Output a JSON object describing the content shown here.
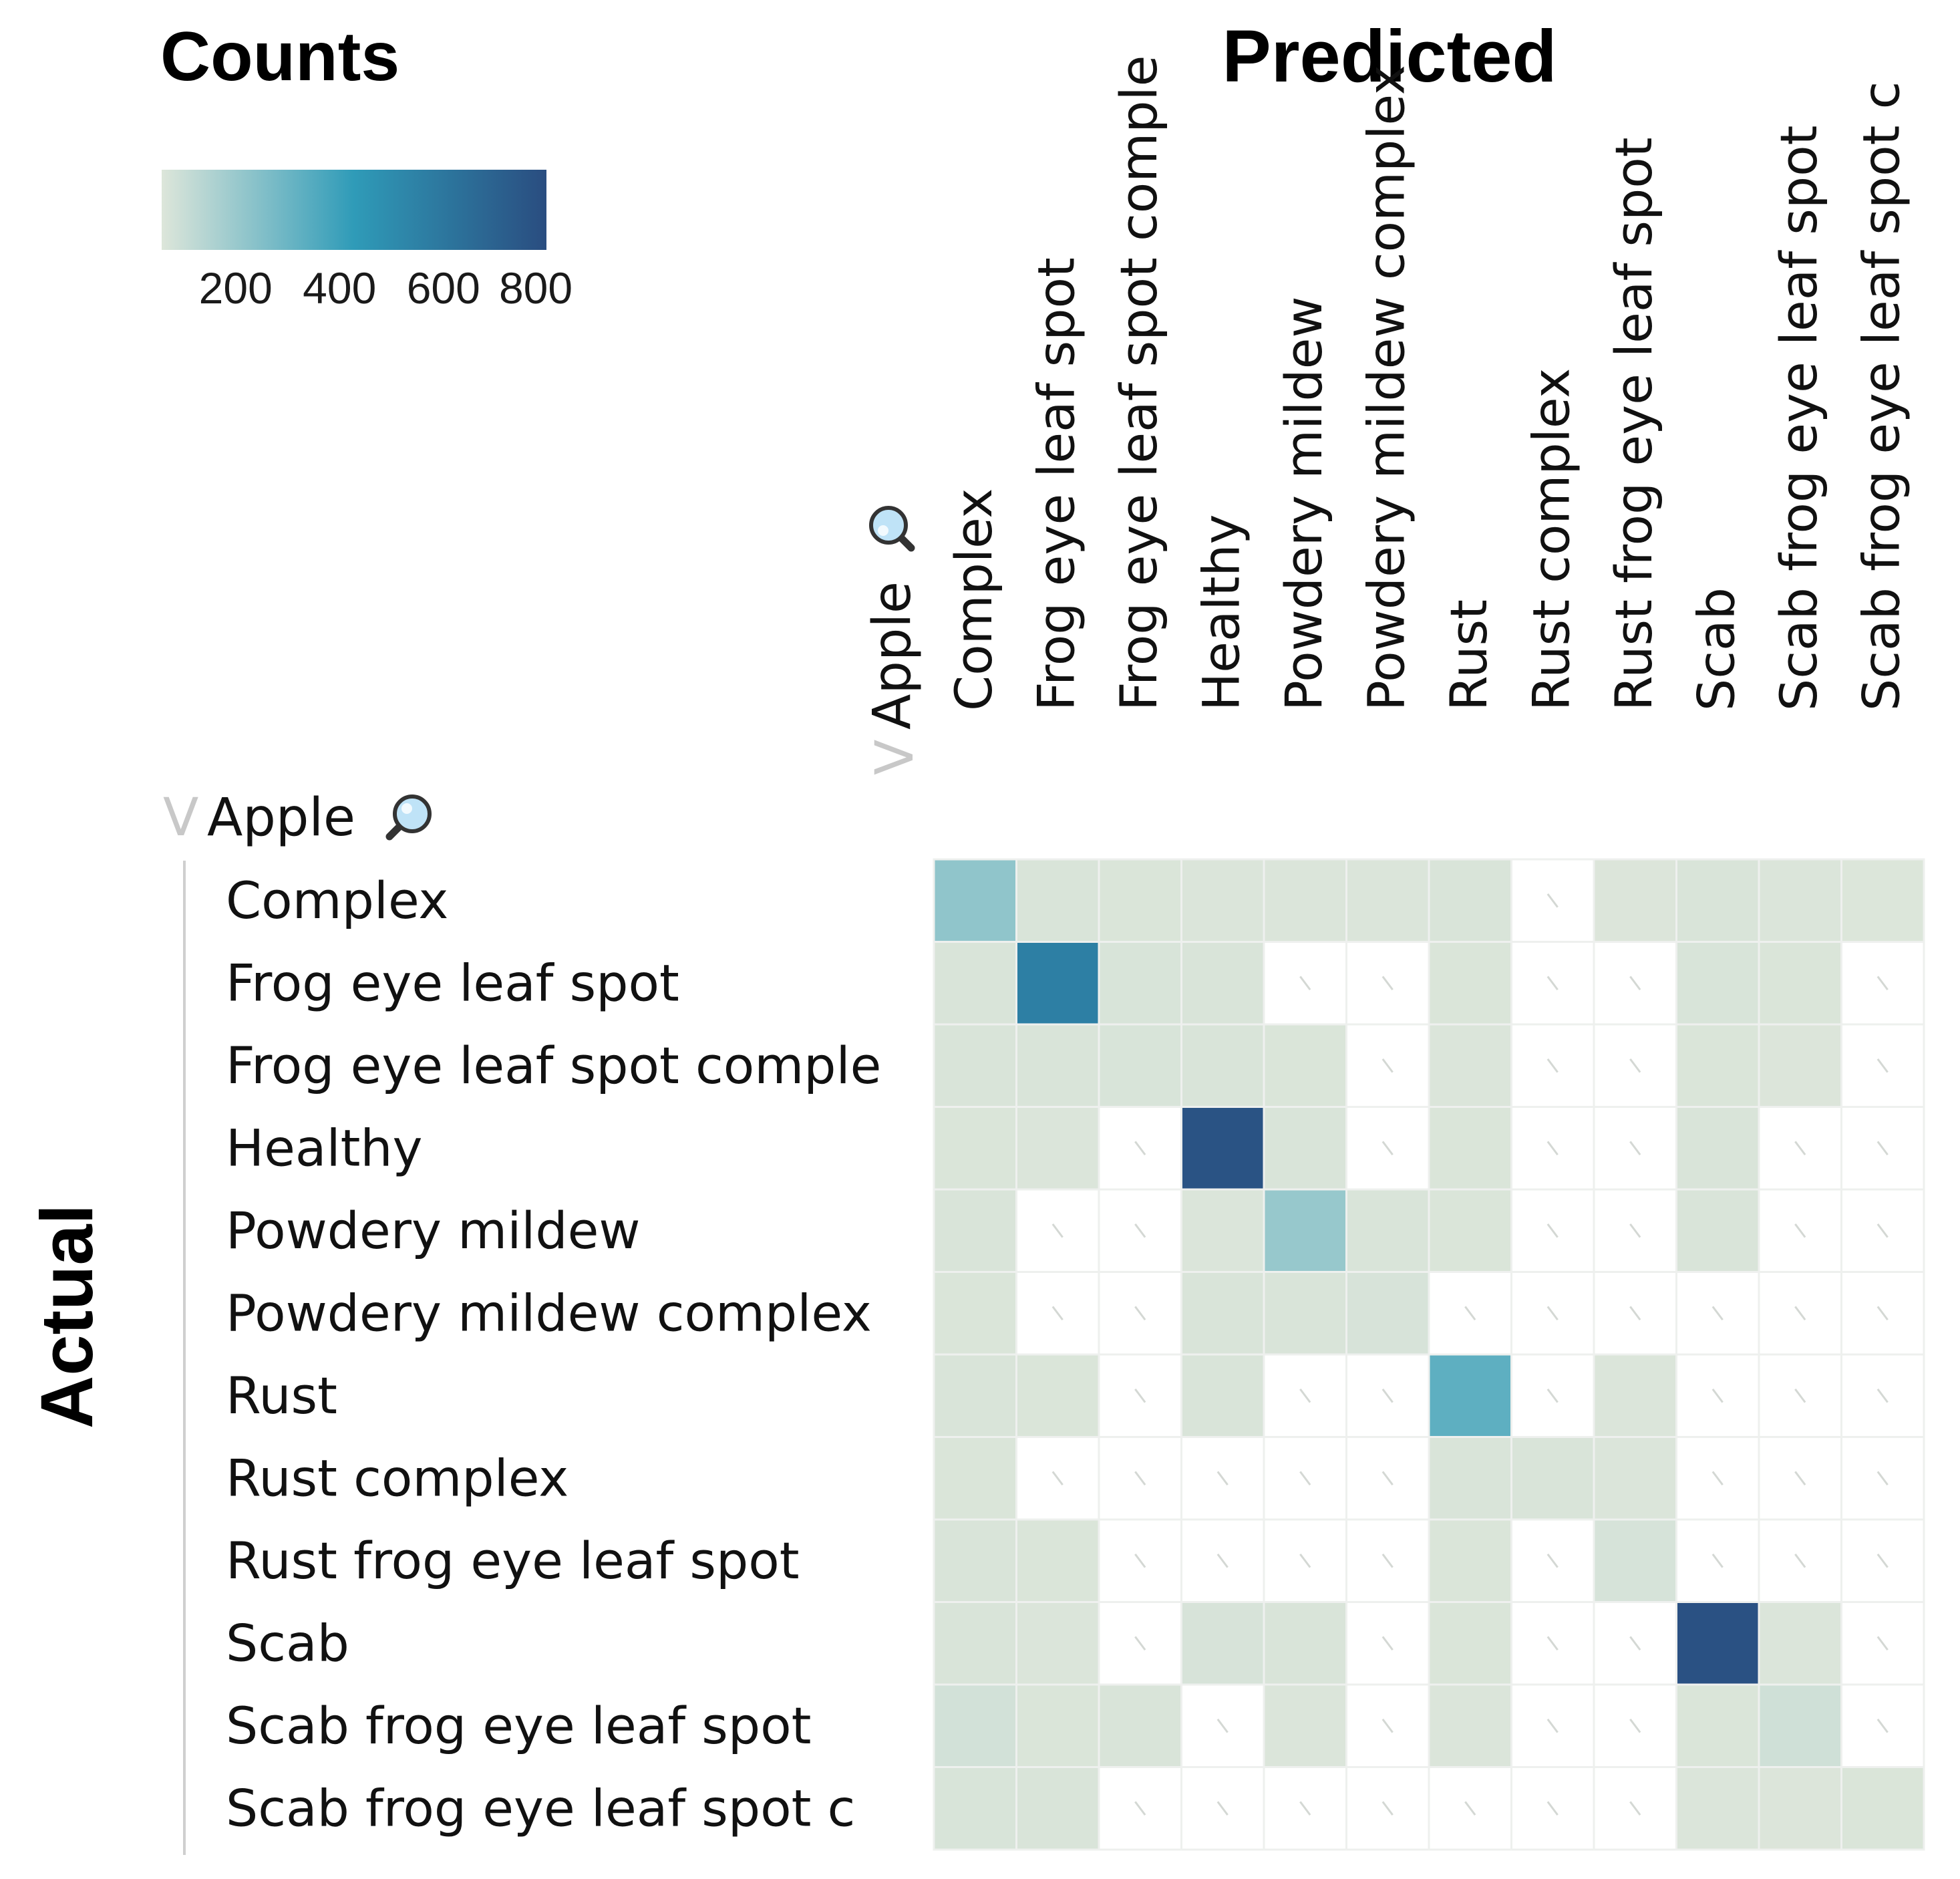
{
  "legend": {
    "title": "Counts",
    "ticks": [
      "200",
      "400",
      "600",
      "800"
    ],
    "color_stops": [
      "#dde6da",
      "#2f9bb8",
      "#2a4d80"
    ]
  },
  "axes": {
    "x_title": "Predicted",
    "y_title": "Actual",
    "group_label": "Apple",
    "collapse_glyph": "V"
  },
  "icons": {
    "group_search": "magnifier-icon",
    "collapse": "chevron-down-icon"
  },
  "colors": {
    "zero": "#ffffff",
    "low": "#dde6da",
    "mid": "#2f9bb8",
    "high": "#2a4d80",
    "grid": "#eef0ee",
    "zero_slash": "#d4d8d4"
  },
  "chart_data": {
    "type": "heatmap",
    "title": "Counts",
    "xlabel": "Predicted",
    "ylabel": "Actual",
    "color_range": [
      0,
      900
    ],
    "x_categories": [
      "Complex",
      "Frog eye leaf spot",
      "Frog eye leaf spot comple",
      "Healthy",
      "Powdery mildew",
      "Powdery mildew complex",
      "Rust",
      "Rust complex",
      "Rust frog eye leaf spot",
      "Scab",
      "Scab frog eye leaf spot",
      "Scab frog eye leaf spot c"
    ],
    "y_categories": [
      "Complex",
      "Frog eye leaf spot",
      "Frog eye leaf spot comple",
      "Healthy",
      "Powdery mildew",
      "Powdery mildew complex",
      "Rust",
      "Rust complex",
      "Rust frog eye leaf spot",
      "Scab",
      "Scab frog eye leaf spot",
      "Scab frog eye leaf spot c"
    ],
    "values": [
      [
        220,
        10,
        8,
        6,
        7,
        5,
        12,
        0,
        4,
        10,
        6,
        3
      ],
      [
        12,
        640,
        14,
        10,
        0,
        0,
        8,
        0,
        0,
        15,
        8,
        0
      ],
      [
        10,
        12,
        15,
        10,
        8,
        0,
        6,
        0,
        0,
        8,
        4,
        0
      ],
      [
        8,
        5,
        0,
        870,
        10,
        0,
        8,
        0,
        0,
        12,
        0,
        0
      ],
      [
        10,
        0,
        0,
        6,
        200,
        10,
        8,
        0,
        0,
        10,
        0,
        0
      ],
      [
        8,
        0,
        0,
        10,
        12,
        18,
        0,
        0,
        0,
        0,
        0,
        0
      ],
      [
        12,
        8,
        0,
        10,
        0,
        0,
        360,
        0,
        6,
        0,
        0,
        0
      ],
      [
        8,
        0,
        0,
        0,
        0,
        0,
        10,
        12,
        6,
        0,
        0,
        0
      ],
      [
        10,
        8,
        0,
        0,
        0,
        0,
        8,
        0,
        20,
        0,
        0,
        0
      ],
      [
        10,
        6,
        0,
        18,
        10,
        0,
        8,
        0,
        0,
        880,
        6,
        0
      ],
      [
        30,
        8,
        10,
        0,
        6,
        0,
        6,
        0,
        0,
        8,
        40,
        0
      ],
      [
        15,
        10,
        0,
        0,
        0,
        0,
        0,
        0,
        0,
        6,
        4,
        8
      ]
    ]
  }
}
